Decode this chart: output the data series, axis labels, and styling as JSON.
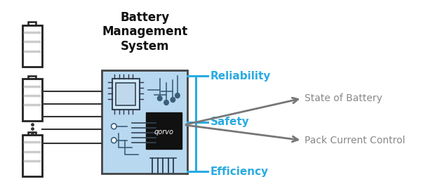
{
  "fig_width": 6.0,
  "fig_height": 2.79,
  "dpi": 100,
  "bg_color": "#ffffff",
  "title": "Battery\nManagement\nSystem",
  "title_fontsize": 12,
  "title_color": "#111111",
  "chip_fill": "#b8d8f0",
  "chip_edge": "#444444",
  "cyan_color": "#29abe2",
  "gray_color": "#888888",
  "arrow_gray": "#777777",
  "labels_cyan": [
    "Reliability",
    "Safety",
    "Efficiency"
  ],
  "labels_gray": [
    "State of Battery",
    "Pack Current Control"
  ],
  "label_fontsize_cyan": 11,
  "label_fontsize_gray": 10
}
